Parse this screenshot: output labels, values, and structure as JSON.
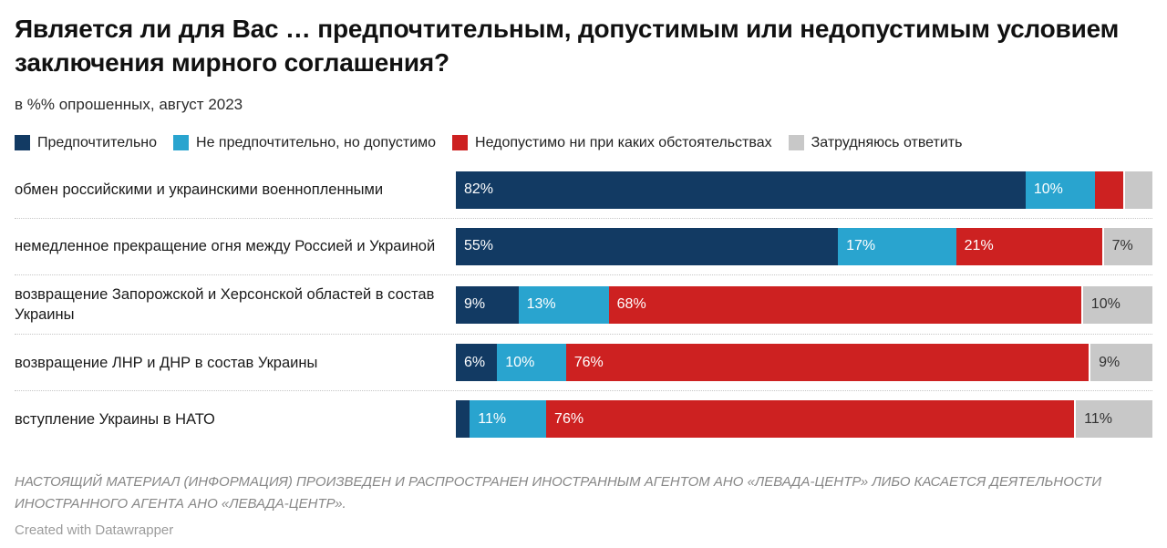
{
  "header": {
    "title": "Является ли для Вас … предпочтительным, допустимым или недопустимым условием заключения мирного соглашения?",
    "subtitle": "в %% опрошенных, август 2023"
  },
  "chart_data": {
    "type": "bar",
    "stacked": true,
    "orientation": "horizontal",
    "unit": "%",
    "xlim": [
      0,
      100
    ],
    "grid": false,
    "legend_position": "top",
    "categories": [
      "обмен российскими и украинскими военнопленными",
      "немедленное прекращение огня между Россией и Украиной",
      "возвращение Запорожской и Херсонской областей в состав Украины",
      "возвращение ЛНР и ДНР в состав Украины",
      "вступление Украины в НАТО"
    ],
    "series": [
      {
        "name": "Предпочтительно",
        "color": "#123a63",
        "values": [
          82,
          55,
          9,
          6,
          2
        ]
      },
      {
        "name": "Не предпочтительно, но допустимо",
        "color": "#29a4cf",
        "values": [
          10,
          17,
          13,
          10,
          11
        ]
      },
      {
        "name": "Недопустимо ни при каких обстоятельствах",
        "color": "#cd2121",
        "values": [
          4,
          21,
          68,
          76,
          76
        ]
      },
      {
        "name": "Затрудняюсь ответить",
        "color": "#c8c8c8",
        "values": [
          4,
          7,
          10,
          9,
          11
        ]
      }
    ],
    "rows": [
      {
        "label": "обмен российскими и украинскими военнопленными",
        "values": [
          82,
          10,
          4,
          4
        ],
        "display": [
          "82%",
          "10%",
          "",
          ""
        ]
      },
      {
        "label": "немедленное прекращение огня между Россией и Украиной",
        "values": [
          55,
          17,
          21,
          7
        ],
        "display": [
          "55%",
          "17%",
          "21%",
          "7%"
        ]
      },
      {
        "label": "возвращение Запорожской и Херсонской областей в состав Украины",
        "values": [
          9,
          13,
          68,
          10
        ],
        "display": [
          "9%",
          "13%",
          "68%",
          "10%"
        ]
      },
      {
        "label": "возвращение ЛНР и ДНР в состав Украины",
        "values": [
          6,
          10,
          76,
          9
        ],
        "display": [
          "6%",
          "10%",
          "76%",
          "9%"
        ]
      },
      {
        "label": "вступление Украины в НАТО",
        "values": [
          2,
          11,
          76,
          11
        ],
        "display": [
          "",
          "11%",
          "76%",
          "11%"
        ]
      }
    ]
  },
  "footer": {
    "disclaimer": "НАСТОЯЩИЙ МАТЕРИАЛ (ИНФОРМАЦИЯ) ПРОИЗВЕДЕН И РАСПРОСТРАНЕН ИНОСТРАННЫМ АГЕНТОМ АНО «ЛЕВАДА-ЦЕНТР» ЛИБО КАСАЕТСЯ ДЕЯТЕЛЬНОСТИ ИНОСТРАННОГО АГЕНТА АНО «ЛЕВАДА-ЦЕНТР».",
    "credit": "Created with Datawrapper"
  }
}
